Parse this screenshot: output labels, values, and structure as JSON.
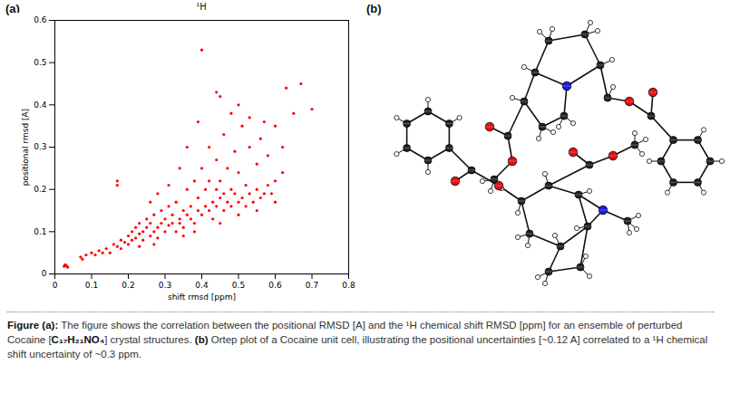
{
  "chart_data": {
    "type": "scatter",
    "title": "¹H",
    "x_label": "shift rmsd [ppm]",
    "y_label": "positional rmsd [A]",
    "x": [
      0.025,
      0.03,
      0.035,
      0.028,
      0.032,
      0.07,
      0.075,
      0.085,
      0.1,
      0.11,
      0.12,
      0.13,
      0.14,
      0.15,
      0.16,
      0.17,
      0.18,
      0.18,
      0.19,
      0.2,
      0.2,
      0.21,
      0.21,
      0.22,
      0.22,
      0.23,
      0.23,
      0.24,
      0.24,
      0.25,
      0.25,
      0.26,
      0.26,
      0.27,
      0.27,
      0.28,
      0.28,
      0.29,
      0.29,
      0.3,
      0.3,
      0.31,
      0.31,
      0.32,
      0.32,
      0.33,
      0.33,
      0.34,
      0.34,
      0.35,
      0.35,
      0.36,
      0.36,
      0.37,
      0.37,
      0.38,
      0.38,
      0.39,
      0.39,
      0.4,
      0.4,
      0.41,
      0.41,
      0.42,
      0.42,
      0.43,
      0.43,
      0.44,
      0.44,
      0.45,
      0.45,
      0.46,
      0.46,
      0.47,
      0.47,
      0.48,
      0.48,
      0.49,
      0.49,
      0.5,
      0.5,
      0.51,
      0.51,
      0.52,
      0.52,
      0.53,
      0.53,
      0.54,
      0.55,
      0.55,
      0.56,
      0.56,
      0.57,
      0.58,
      0.58,
      0.59,
      0.6,
      0.6,
      0.62,
      0.63,
      0.65,
      0.67,
      0.7,
      0.4,
      0.44,
      0.45,
      0.39,
      0.36,
      0.34,
      0.31,
      0.28,
      0.26,
      0.17,
      0.17,
      0.48,
      0.5,
      0.53,
      0.57,
      0.62,
      0.42,
      0.44,
      0.46,
      0.38,
      0.35,
      0.27,
      0.23,
      0.45,
      0.5,
      0.55,
      0.6
    ],
    "values": [
      0.018,
      0.02,
      0.016,
      0.022,
      0.019,
      0.04,
      0.035,
      0.045,
      0.05,
      0.045,
      0.055,
      0.05,
      0.06,
      0.05,
      0.07,
      0.065,
      0.08,
      0.06,
      0.075,
      0.09,
      0.07,
      0.1,
      0.08,
      0.11,
      0.085,
      0.095,
      0.12,
      0.1,
      0.08,
      0.11,
      0.13,
      0.09,
      0.12,
      0.1,
      0.14,
      0.11,
      0.085,
      0.12,
      0.15,
      0.1,
      0.13,
      0.115,
      0.16,
      0.12,
      0.14,
      0.1,
      0.17,
      0.13,
      0.12,
      0.15,
      0.11,
      0.14,
      0.2,
      0.13,
      0.16,
      0.12,
      0.22,
      0.15,
      0.18,
      0.14,
      0.25,
      0.16,
      0.2,
      0.15,
      0.3,
      0.17,
      0.13,
      0.16,
      0.27,
      0.18,
      0.22,
      0.15,
      0.33,
      0.17,
      0.25,
      0.16,
      0.2,
      0.19,
      0.29,
      0.17,
      0.24,
      0.18,
      0.35,
      0.16,
      0.21,
      0.19,
      0.3,
      0.17,
      0.2,
      0.26,
      0.18,
      0.32,
      0.19,
      0.21,
      0.28,
      0.19,
      0.22,
      0.35,
      0.3,
      0.44,
      0.38,
      0.45,
      0.39,
      0.53,
      0.43,
      0.42,
      0.36,
      0.3,
      0.25,
      0.21,
      0.19,
      0.17,
      0.22,
      0.21,
      0.38,
      0.4,
      0.37,
      0.36,
      0.24,
      0.22,
      0.2,
      0.19,
      0.1,
      0.09,
      0.07,
      0.065,
      0.12,
      0.14,
      0.15,
      0.17
    ],
    "color": "#ff0000",
    "marker": "dot",
    "grid": false,
    "xlim": [
      0,
      0.8
    ],
    "xticks": [
      0,
      0.1,
      0.2,
      0.3,
      0.4,
      0.5,
      0.6,
      0.7,
      0.8
    ],
    "ylim": [
      0,
      0.6
    ],
    "yticks": [
      0,
      0.1,
      0.2,
      0.3,
      0.4,
      0.5,
      0.6
    ]
  },
  "panel_labels": {
    "a": "(a)",
    "b": "(b)"
  },
  "caption": {
    "label_a": "Figure (a):",
    "text_a": "The figure shows the correlation between the positional RMSD [A] and the ¹H chemical shift RMSD [ppm] for an ensemble of perturbed Cocaine [",
    "formula": "C₁₇H₂₁NO₄",
    "text_a_end": "] crystal structures.",
    "label_b": "(b)",
    "text_b": "Ortep plot of a Cocaine unit cell, illustrating the positional uncertainties [~0.12 A] correlated to a ¹H chemical shift uncertainty of ~0.3 ppm."
  }
}
